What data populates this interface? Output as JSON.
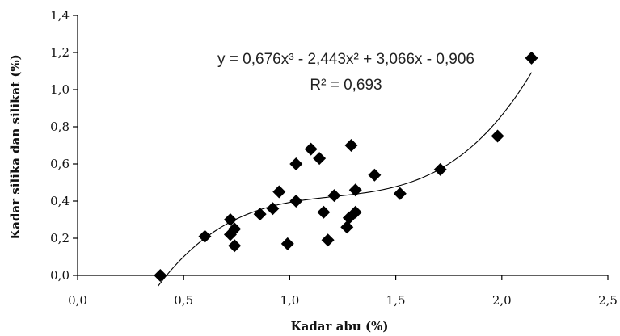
{
  "chart_data": {
    "type": "scatter",
    "xlabel": "Kadar abu (%)",
    "ylabel": "Kadar silika dan silikat (%)",
    "xlim": [
      0.0,
      2.5
    ],
    "ylim": [
      0.0,
      1.4
    ],
    "xticks": [
      "0,0",
      "0,5",
      "1,0",
      "1,5",
      "2,0",
      "2,5"
    ],
    "yticks": [
      "0,0",
      "0,2",
      "0,4",
      "0,6",
      "0,8",
      "1,0",
      "1,2",
      "1,4"
    ],
    "grid": false,
    "marker": "diamond",
    "marker_color": "#000000",
    "trendline": {
      "type": "polynomial",
      "degree": 3,
      "coefficients": [
        0.676,
        -2.443,
        3.066,
        -0.906
      ],
      "range": [
        0.38,
        2.14
      ],
      "equation_text": "y = 0,676x³ - 2,443x² + 3,066x - 0,906",
      "r2_text": "R² = 0,693"
    },
    "points": [
      {
        "x": 0.39,
        "y": 0.0
      },
      {
        "x": 0.6,
        "y": 0.21
      },
      {
        "x": 0.72,
        "y": 0.3
      },
      {
        "x": 0.72,
        "y": 0.22
      },
      {
        "x": 0.74,
        "y": 0.25
      },
      {
        "x": 0.74,
        "y": 0.16
      },
      {
        "x": 0.86,
        "y": 0.33
      },
      {
        "x": 0.92,
        "y": 0.36
      },
      {
        "x": 0.95,
        "y": 0.45
      },
      {
        "x": 0.99,
        "y": 0.17
      },
      {
        "x": 1.03,
        "y": 0.6
      },
      {
        "x": 1.03,
        "y": 0.4
      },
      {
        "x": 1.1,
        "y": 0.68
      },
      {
        "x": 1.14,
        "y": 0.63
      },
      {
        "x": 1.16,
        "y": 0.34
      },
      {
        "x": 1.18,
        "y": 0.19
      },
      {
        "x": 1.21,
        "y": 0.43
      },
      {
        "x": 1.27,
        "y": 0.26
      },
      {
        "x": 1.28,
        "y": 0.31
      },
      {
        "x": 1.29,
        "y": 0.7
      },
      {
        "x": 1.31,
        "y": 0.46
      },
      {
        "x": 1.31,
        "y": 0.34
      },
      {
        "x": 1.4,
        "y": 0.54
      },
      {
        "x": 1.52,
        "y": 0.44
      },
      {
        "x": 1.71,
        "y": 0.57
      },
      {
        "x": 1.98,
        "y": 0.75
      },
      {
        "x": 2.14,
        "y": 1.17
      }
    ]
  }
}
